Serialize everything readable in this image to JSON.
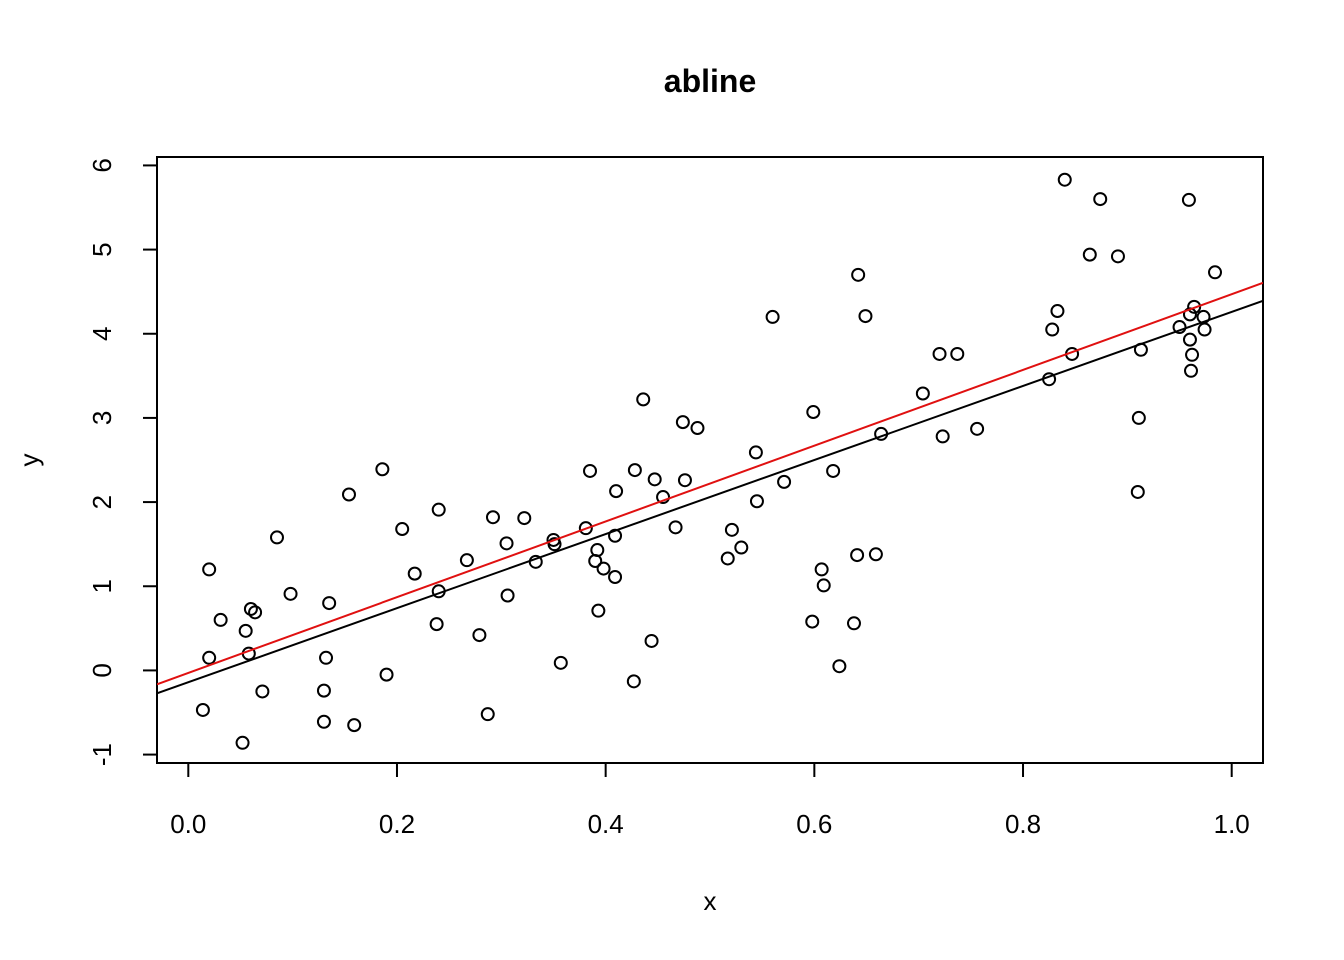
{
  "chart_data": {
    "type": "scatter",
    "title": "abline",
    "xlabel": "x",
    "ylabel": "y",
    "xlim": [
      -0.03,
      1.03
    ],
    "ylim": [
      -1.1,
      6.1
    ],
    "x_ticks": [
      0.0,
      0.2,
      0.4,
      0.6,
      0.8,
      1.0
    ],
    "x_tick_labels": [
      "0.0",
      "0.2",
      "0.4",
      "0.6",
      "0.8",
      "1.0"
    ],
    "y_ticks": [
      -1,
      0,
      1,
      2,
      3,
      4,
      5,
      6
    ],
    "y_tick_labels": [
      "-1",
      "0",
      "1",
      "2",
      "3",
      "4",
      "5",
      "6"
    ],
    "grid": false,
    "lines": [
      {
        "intercept": -0.03,
        "slope": 4.5,
        "color": "#e01010"
      },
      {
        "intercept": -0.14,
        "slope": 4.4,
        "color": "#000000"
      }
    ],
    "points": [
      [
        0.014,
        -0.47
      ],
      [
        0.02,
        1.2
      ],
      [
        0.02,
        0.15
      ],
      [
        0.031,
        0.6
      ],
      [
        0.052,
        -0.86
      ],
      [
        0.055,
        0.47
      ],
      [
        0.058,
        0.2
      ],
      [
        0.06,
        0.73
      ],
      [
        0.064,
        0.69
      ],
      [
        0.071,
        -0.25
      ],
      [
        0.085,
        1.58
      ],
      [
        0.098,
        0.91
      ],
      [
        0.13,
        -0.24
      ],
      [
        0.13,
        -0.61
      ],
      [
        0.132,
        0.15
      ],
      [
        0.135,
        0.8
      ],
      [
        0.154,
        2.09
      ],
      [
        0.159,
        -0.65
      ],
      [
        0.186,
        2.39
      ],
      [
        0.19,
        -0.05
      ],
      [
        0.205,
        1.68
      ],
      [
        0.217,
        1.15
      ],
      [
        0.238,
        0.55
      ],
      [
        0.24,
        0.94
      ],
      [
        0.24,
        1.91
      ],
      [
        0.267,
        1.31
      ],
      [
        0.279,
        0.42
      ],
      [
        0.287,
        -0.52
      ],
      [
        0.292,
        1.82
      ],
      [
        0.305,
        1.51
      ],
      [
        0.306,
        0.89
      ],
      [
        0.322,
        1.81
      ],
      [
        0.333,
        1.29
      ],
      [
        0.35,
        1.55
      ],
      [
        0.351,
        1.5
      ],
      [
        0.357,
        0.09
      ],
      [
        0.381,
        1.69
      ],
      [
        0.385,
        2.37
      ],
      [
        0.39,
        1.3
      ],
      [
        0.392,
        1.43
      ],
      [
        0.393,
        0.71
      ],
      [
        0.398,
        1.21
      ],
      [
        0.409,
        1.11
      ],
      [
        0.409,
        1.6
      ],
      [
        0.41,
        2.13
      ],
      [
        0.427,
        -0.13
      ],
      [
        0.428,
        2.38
      ],
      [
        0.436,
        3.22
      ],
      [
        0.444,
        0.35
      ],
      [
        0.447,
        2.27
      ],
      [
        0.455,
        2.06
      ],
      [
        0.467,
        1.7
      ],
      [
        0.474,
        2.95
      ],
      [
        0.476,
        2.26
      ],
      [
        0.488,
        2.88
      ],
      [
        0.517,
        1.33
      ],
      [
        0.521,
        1.67
      ],
      [
        0.53,
        1.46
      ],
      [
        0.544,
        2.59
      ],
      [
        0.545,
        2.01
      ],
      [
        0.56,
        4.2
      ],
      [
        0.571,
        2.24
      ],
      [
        0.598,
        0.58
      ],
      [
        0.599,
        3.07
      ],
      [
        0.607,
        1.2
      ],
      [
        0.609,
        1.01
      ],
      [
        0.618,
        2.37
      ],
      [
        0.624,
        0.05
      ],
      [
        0.638,
        0.56
      ],
      [
        0.641,
        1.37
      ],
      [
        0.642,
        4.7
      ],
      [
        0.649,
        4.21
      ],
      [
        0.659,
        1.38
      ],
      [
        0.664,
        2.81
      ],
      [
        0.704,
        3.29
      ],
      [
        0.72,
        3.76
      ],
      [
        0.723,
        2.78
      ],
      [
        0.737,
        3.76
      ],
      [
        0.756,
        2.87
      ],
      [
        0.825,
        3.46
      ],
      [
        0.828,
        4.05
      ],
      [
        0.833,
        4.27
      ],
      [
        0.84,
        5.83
      ],
      [
        0.847,
        3.76
      ],
      [
        0.864,
        4.94
      ],
      [
        0.874,
        5.6
      ],
      [
        0.891,
        4.92
      ],
      [
        0.91,
        2.12
      ],
      [
        0.911,
        3.0
      ],
      [
        0.913,
        3.81
      ],
      [
        0.95,
        4.08
      ],
      [
        0.959,
        5.59
      ],
      [
        0.96,
        3.93
      ],
      [
        0.96,
        4.23
      ],
      [
        0.961,
        3.56
      ],
      [
        0.962,
        3.75
      ],
      [
        0.964,
        4.32
      ],
      [
        0.973,
        4.2
      ],
      [
        0.974,
        4.05
      ],
      [
        0.984,
        4.73
      ]
    ]
  }
}
